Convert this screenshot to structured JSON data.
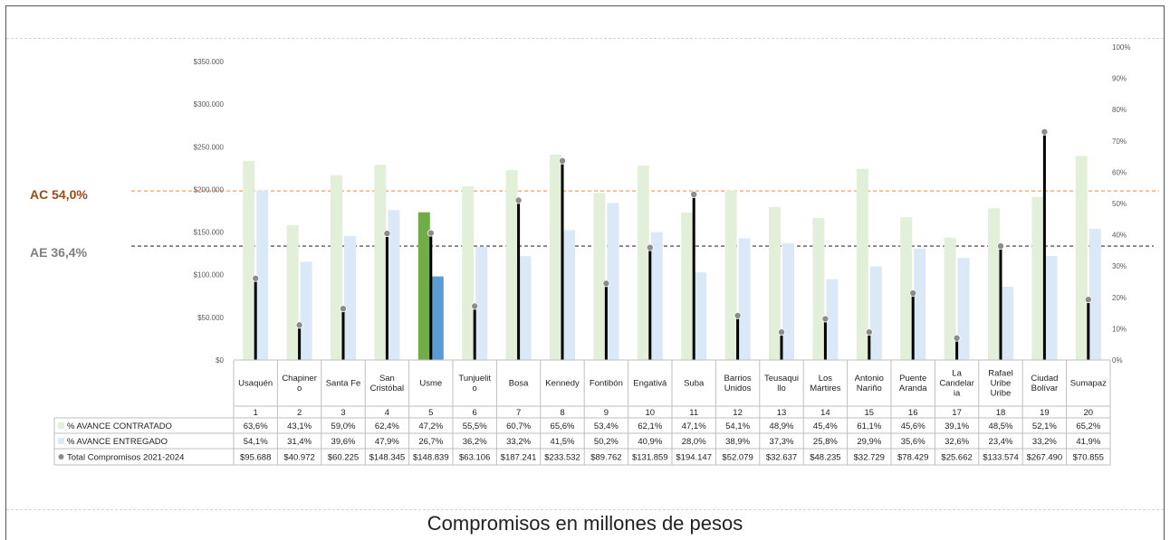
{
  "caption": "Compromisos en millones de pesos",
  "reference_lines": {
    "ac": {
      "label": "AC 54,0%",
      "value": 54.0,
      "color": "#f4a064"
    },
    "ae": {
      "label": "AE 36,4%",
      "value": 36.4,
      "color": "#595959"
    }
  },
  "colors": {
    "contratado": "#e2f0d9",
    "entregado": "#dae8f8",
    "highlight_contratado": "#70ad47",
    "highlight_entregado": "#5b9bd5",
    "total_line": "#000000",
    "total_marker": "#8c8c8c"
  },
  "chart_data": {
    "type": "bar",
    "highlight_category": "Usme",
    "categories": [
      "Usaquén",
      "Chapinero",
      "Santa Fe",
      "San Cristóbal",
      "Usme",
      "Tunjuelito",
      "Bosa",
      "Kennedy",
      "Fontibón",
      "Engativá",
      "Suba",
      "Barrios Unidos",
      "Teusaquillo",
      "Los Mártires",
      "Antonio Nariño",
      "Puente Aranda",
      "La Candelaria",
      "Rafael Uribe Uribe",
      "Ciudad Bolívar",
      "Sumapaz"
    ],
    "category_lines": [
      [
        "Usaquén"
      ],
      [
        "Chapiner",
        "o"
      ],
      [
        "Santa Fe"
      ],
      [
        "San",
        "Cristóbal"
      ],
      [
        "Usme"
      ],
      [
        "Tunjuelit",
        "o"
      ],
      [
        "Bosa"
      ],
      [
        "Kennedy"
      ],
      [
        "Fontibón"
      ],
      [
        "Engativá"
      ],
      [
        "Suba"
      ],
      [
        "Barrios",
        "Unidos"
      ],
      [
        "Teusaqui",
        "llo"
      ],
      [
        "Los",
        "Mártires"
      ],
      [
        "Antonio",
        "Nariño"
      ],
      [
        "Puente",
        "Aranda"
      ],
      [
        "La",
        "Candelar",
        "ia"
      ],
      [
        "Rafael",
        "Uribe",
        "Uribe"
      ],
      [
        "Ciudad",
        "Bolívar"
      ],
      [
        "Sumapaz"
      ]
    ],
    "numbers": [
      "1",
      "2",
      "3",
      "4",
      "5",
      "6",
      "7",
      "8",
      "9",
      "10",
      "11",
      "12",
      "13",
      "14",
      "15",
      "16",
      "17",
      "18",
      "19",
      "20"
    ],
    "y_left": {
      "min": 0,
      "max": 350000,
      "ticks": [
        "$0",
        "$50.000",
        "$100.000",
        "$150.000",
        "$200.000",
        "$250.000",
        "$300.000",
        "$350.000"
      ]
    },
    "y_right": {
      "min": 0,
      "max": 100,
      "ticks": [
        "0%",
        "10%",
        "20%",
        "30%",
        "40%",
        "50%",
        "60%",
        "70%",
        "80%",
        "90%",
        "100%"
      ]
    },
    "series": [
      {
        "name": "% AVANCE CONTRATADO",
        "kind": "bar",
        "axis": "right",
        "values": [
          63.6,
          43.1,
          59.0,
          62.4,
          47.2,
          55.5,
          60.7,
          65.6,
          53.4,
          62.1,
          47.1,
          54.1,
          48.9,
          45.4,
          61.1,
          45.6,
          39.1,
          48.5,
          52.1,
          65.2
        ],
        "labels": [
          "63,6%",
          "43,1%",
          "59,0%",
          "62,4%",
          "47,2%",
          "55,5%",
          "60,7%",
          "65,6%",
          "53,4%",
          "62,1%",
          "47,1%",
          "54,1%",
          "48,9%",
          "45,4%",
          "61,1%",
          "45,6%",
          "39,1%",
          "48,5%",
          "52,1%",
          "65,2%"
        ]
      },
      {
        "name": "% AVANCE ENTREGADO",
        "kind": "bar",
        "axis": "right",
        "values": [
          54.1,
          31.4,
          39.6,
          47.9,
          26.7,
          36.2,
          33.2,
          41.5,
          50.2,
          40.9,
          28.0,
          38.9,
          37.3,
          25.8,
          29.9,
          35.6,
          32.6,
          23.4,
          33.2,
          41.9
        ],
        "labels": [
          "54,1%",
          "31,4%",
          "39,6%",
          "47,9%",
          "26,7%",
          "36,2%",
          "33,2%",
          "41,5%",
          "50,2%",
          "40,9%",
          "28,0%",
          "38,9%",
          "37,3%",
          "25,8%",
          "29,9%",
          "35,6%",
          "32,6%",
          "23,4%",
          "33,2%",
          "41,9%"
        ]
      },
      {
        "name": "Total Compromisos 2021-2024",
        "kind": "lollipop",
        "axis": "left",
        "values": [
          95688,
          40972,
          60225,
          148345,
          148839,
          63106,
          187241,
          233532,
          89762,
          131859,
          194147,
          52079,
          32637,
          48235,
          32729,
          78429,
          25662,
          133574,
          267490,
          70855
        ],
        "labels": [
          "$95.688",
          "$40.972",
          "$60.225",
          "$148.345",
          "$148.839",
          "$63.106",
          "$187.241",
          "$233.532",
          "$89.762",
          "$131.859",
          "$194.147",
          "$52.079",
          "$32.637",
          "$48.235",
          "$32.729",
          "$78.429",
          "$25.662",
          "$133.574",
          "$267.490",
          "$70.855"
        ]
      }
    ]
  }
}
